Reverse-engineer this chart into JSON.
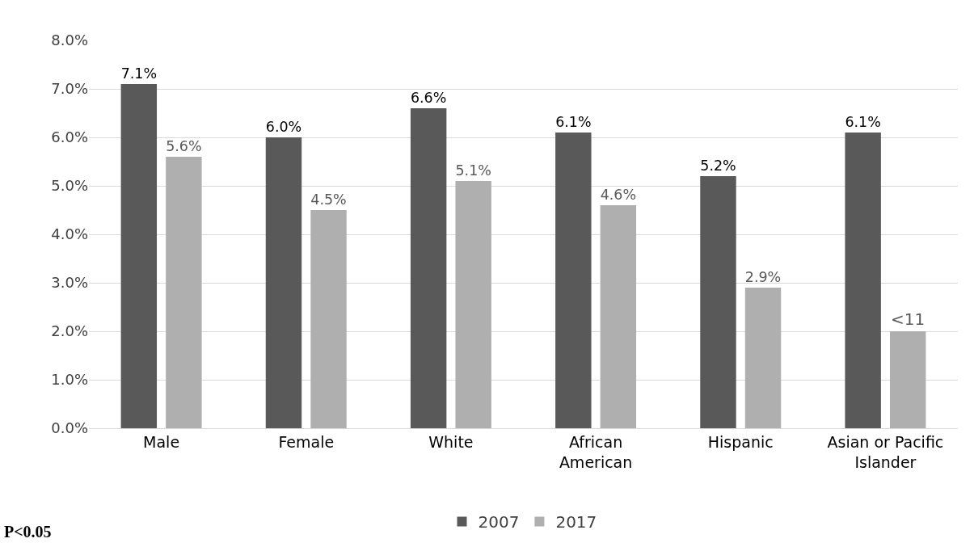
{
  "chart_data": {
    "type": "bar",
    "categories": [
      "Male",
      "Female",
      "White",
      "African American",
      "Hispanic",
      "Asian or Pacific Islander"
    ],
    "series": [
      {
        "name": "2007",
        "color": "#595959",
        "values": [
          7.1,
          6.0,
          6.6,
          6.1,
          5.2,
          6.1
        ],
        "value_labels": [
          "7.1%",
          "6.0%",
          "6.6%",
          "6.1%",
          "5.2%",
          "6.1%"
        ]
      },
      {
        "name": "2017",
        "color": "#afafaf",
        "values": [
          5.6,
          4.5,
          5.1,
          4.6,
          2.9,
          2.0
        ],
        "value_labels": [
          "5.6%",
          "4.5%",
          "5.1%",
          "4.6%",
          "2.9%",
          "<11"
        ]
      }
    ],
    "ylim": [
      0,
      8
    ],
    "yticks": [
      {
        "value": 0,
        "label": "0.0%"
      },
      {
        "value": 1,
        "label": "1.0%"
      },
      {
        "value": 2,
        "label": "2.0%"
      },
      {
        "value": 3,
        "label": "3.0%"
      },
      {
        "value": 4,
        "label": "4.0%"
      },
      {
        "value": 5,
        "label": "5.0%"
      },
      {
        "value": 6,
        "label": "6.0%"
      },
      {
        "value": 7,
        "label": "7.0%"
      },
      {
        "value": 8,
        "label": "8.0%"
      }
    ],
    "grid": "y",
    "legend": "bottom",
    "annotations": [
      "P<0.05"
    ]
  }
}
